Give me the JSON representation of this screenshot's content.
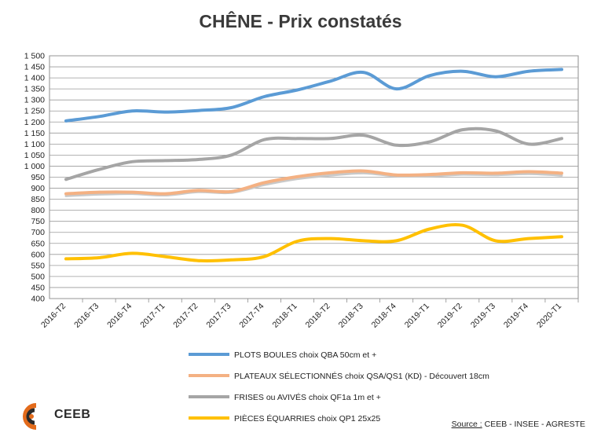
{
  "chart_data": {
    "type": "line",
    "title": "CHÊNE - Prix constatés",
    "xlabel": "",
    "ylabel": "",
    "ylim": [
      400,
      1500
    ],
    "ystep": 50,
    "grid": true,
    "legend_position": "bottom",
    "categories": [
      "2016-T2",
      "2016-T3",
      "2016-T4",
      "2017-T1",
      "2017-T2",
      "2017-T3",
      "2017-T4",
      "2018-T1",
      "2018-T2",
      "2018-T3",
      "2018-T4",
      "2019-T1",
      "2019-T2",
      "2019-T3",
      "2019-T4",
      "2020-T1"
    ],
    "series": [
      {
        "name": "PLOTS BOULES choix QBA  50cm et +",
        "color": "#5b9bd5",
        "values": [
          1205,
          1225,
          1250,
          1245,
          1252,
          1265,
          1315,
          1345,
          1385,
          1425,
          1350,
          1410,
          1430,
          1405,
          1430,
          1438
        ]
      },
      {
        "name": "PLATEAUX SÉLECTIONNÉS choix QSA/QS1 (KD) - Découvert 18cm",
        "color": "#f4b183",
        "values": [
          875,
          882,
          882,
          875,
          890,
          885,
          925,
          952,
          970,
          978,
          960,
          962,
          970,
          968,
          975,
          968
        ]
      },
      {
        "name": "FRISES ou AVIVÉS choix QF1a 1m et +",
        "color": "#a5a5a5",
        "values": [
          940,
          985,
          1020,
          1025,
          1030,
          1050,
          1120,
          1125,
          1125,
          1140,
          1095,
          1110,
          1165,
          1160,
          1100,
          1125
        ]
      },
      {
        "name": "PIÈCES ÉQUARRIES choix QP1 25x25",
        "color": "#ffc000",
        "values": [
          580,
          585,
          605,
          590,
          572,
          575,
          590,
          660,
          672,
          662,
          662,
          715,
          732,
          662,
          672,
          680
        ]
      },
      {
        "name": "",
        "color": "#c9c9c9",
        "values": [
          865,
          872,
          875,
          868,
          883,
          880,
          915,
          942,
          958,
          968,
          955,
          955,
          962,
          960,
          965,
          958
        ]
      }
    ]
  },
  "source_label": "Source :",
  "source_text": " CEEB - INSEE - AGRESTE",
  "logo_text": "CEEB"
}
